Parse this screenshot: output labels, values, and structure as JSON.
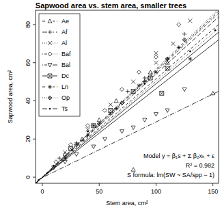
{
  "chart_data": {
    "type": "scatter",
    "title": "Sapwood area vs. stem area, smaller trees",
    "x_label": "Stem area, cm²",
    "y_label": "Sapwood area, cm²",
    "xlim": [
      -6,
      155
    ],
    "ylim": [
      -3.2,
      87.5
    ],
    "xticks": [
      0,
      50,
      100,
      150
    ],
    "yticks": [
      0,
      20,
      40,
      60,
      80
    ],
    "legend": "top-left",
    "grid": false,
    "annotations": [
      "Model  y = β₁s + Σ β₂xₖ + ε",
      "R² = 0.982",
      "S formula:  lm(SW ~ SA/spp − 1)"
    ],
    "series": [
      {
        "name": "Ae",
        "color": "#000000",
        "marker": "triangle",
        "line_style": "dashed",
        "x": [
          20,
          35,
          50,
          80,
          110,
          150,
          65,
          95
        ],
        "values": [
          12,
          20,
          30,
          4,
          60,
          44,
          40,
          55
        ],
        "fit_x": [
          -6,
          155
        ],
        "fit_y": [
          -3.4,
          87
        ]
      },
      {
        "name": "Af",
        "color": "#000000",
        "marker": "plus",
        "line_style": "longdash",
        "x": [
          15,
          30,
          45,
          60,
          75,
          90,
          110,
          125
        ],
        "values": [
          10,
          18,
          27,
          33,
          45,
          52,
          62,
          75
        ],
        "fit_x": [
          -6,
          155
        ],
        "fit_y": [
          -3.3,
          84
        ]
      },
      {
        "name": "Al",
        "color": "#000000",
        "marker": "x",
        "line_style": "dotted",
        "x": [
          20,
          40,
          60,
          80,
          100,
          115,
          130,
          100
        ],
        "values": [
          13,
          25,
          38,
          50,
          60,
          70,
          82,
          65
        ],
        "fit_x": [
          -6,
          155
        ],
        "fit_y": [
          -3.4,
          88
        ]
      },
      {
        "name": "Baf",
        "color": "#000000",
        "marker": "diamond",
        "line_style": "dotdash",
        "x": [
          12,
          25,
          40,
          55,
          70,
          85,
          100,
          120
        ],
        "values": [
          8,
          17,
          27,
          35,
          46,
          55,
          63,
          80
        ],
        "fit_x": [
          -6,
          155
        ],
        "fit_y": [
          -3.3,
          86
        ]
      },
      {
        "name": "Bal",
        "color": "#000000",
        "marker": "triangle-down",
        "line_style": "longdotdash",
        "x": [
          10,
          20,
          30,
          45,
          55,
          70,
          80,
          90,
          100,
          110,
          125
        ],
        "values": [
          5,
          8,
          12,
          16,
          20,
          24,
          26,
          30,
          33,
          35,
          46
        ],
        "fit_x": [
          -6,
          155
        ],
        "fit_y": [
          -2.0,
          45
        ]
      },
      {
        "name": "Dc",
        "color": "#000000",
        "marker": "square-x",
        "line_style": "solid",
        "x": [
          25,
          45,
          60,
          80,
          95,
          110,
          105
        ],
        "values": [
          15,
          27,
          35,
          45,
          52,
          57,
          44
        ],
        "fit_x": [
          -6,
          155
        ],
        "fit_y": [
          -3.0,
          72
        ]
      },
      {
        "name": "Ln",
        "color": "#000000",
        "marker": "asterisk",
        "line_style": "dashed",
        "x": [
          20,
          40,
          65,
          85,
          100,
          120,
          130
        ],
        "values": [
          10,
          22,
          36,
          48,
          55,
          68,
          62
        ],
        "fit_x": [
          -6,
          155
        ],
        "fit_y": [
          -3.2,
          80
        ]
      },
      {
        "name": "Op",
        "color": "#000000",
        "marker": "diamond-plus",
        "line_style": "dotted",
        "x": [
          30,
          50,
          70,
          90,
          110,
          125
        ],
        "values": [
          17,
          28,
          39,
          50,
          62,
          72
        ],
        "fit_x": [
          -6,
          155
        ],
        "fit_y": [
          -3.2,
          78
        ]
      },
      {
        "name": "Ts",
        "color": "#000000",
        "marker": "dot",
        "line_style": "solid",
        "x": [
          10,
          40,
          90,
          130,
          152
        ],
        "values": [
          6,
          24,
          49,
          66,
          77
        ],
        "fit_x": [
          -6,
          155
        ],
        "fit_y": [
          -3.1,
          76
        ]
      }
    ]
  }
}
